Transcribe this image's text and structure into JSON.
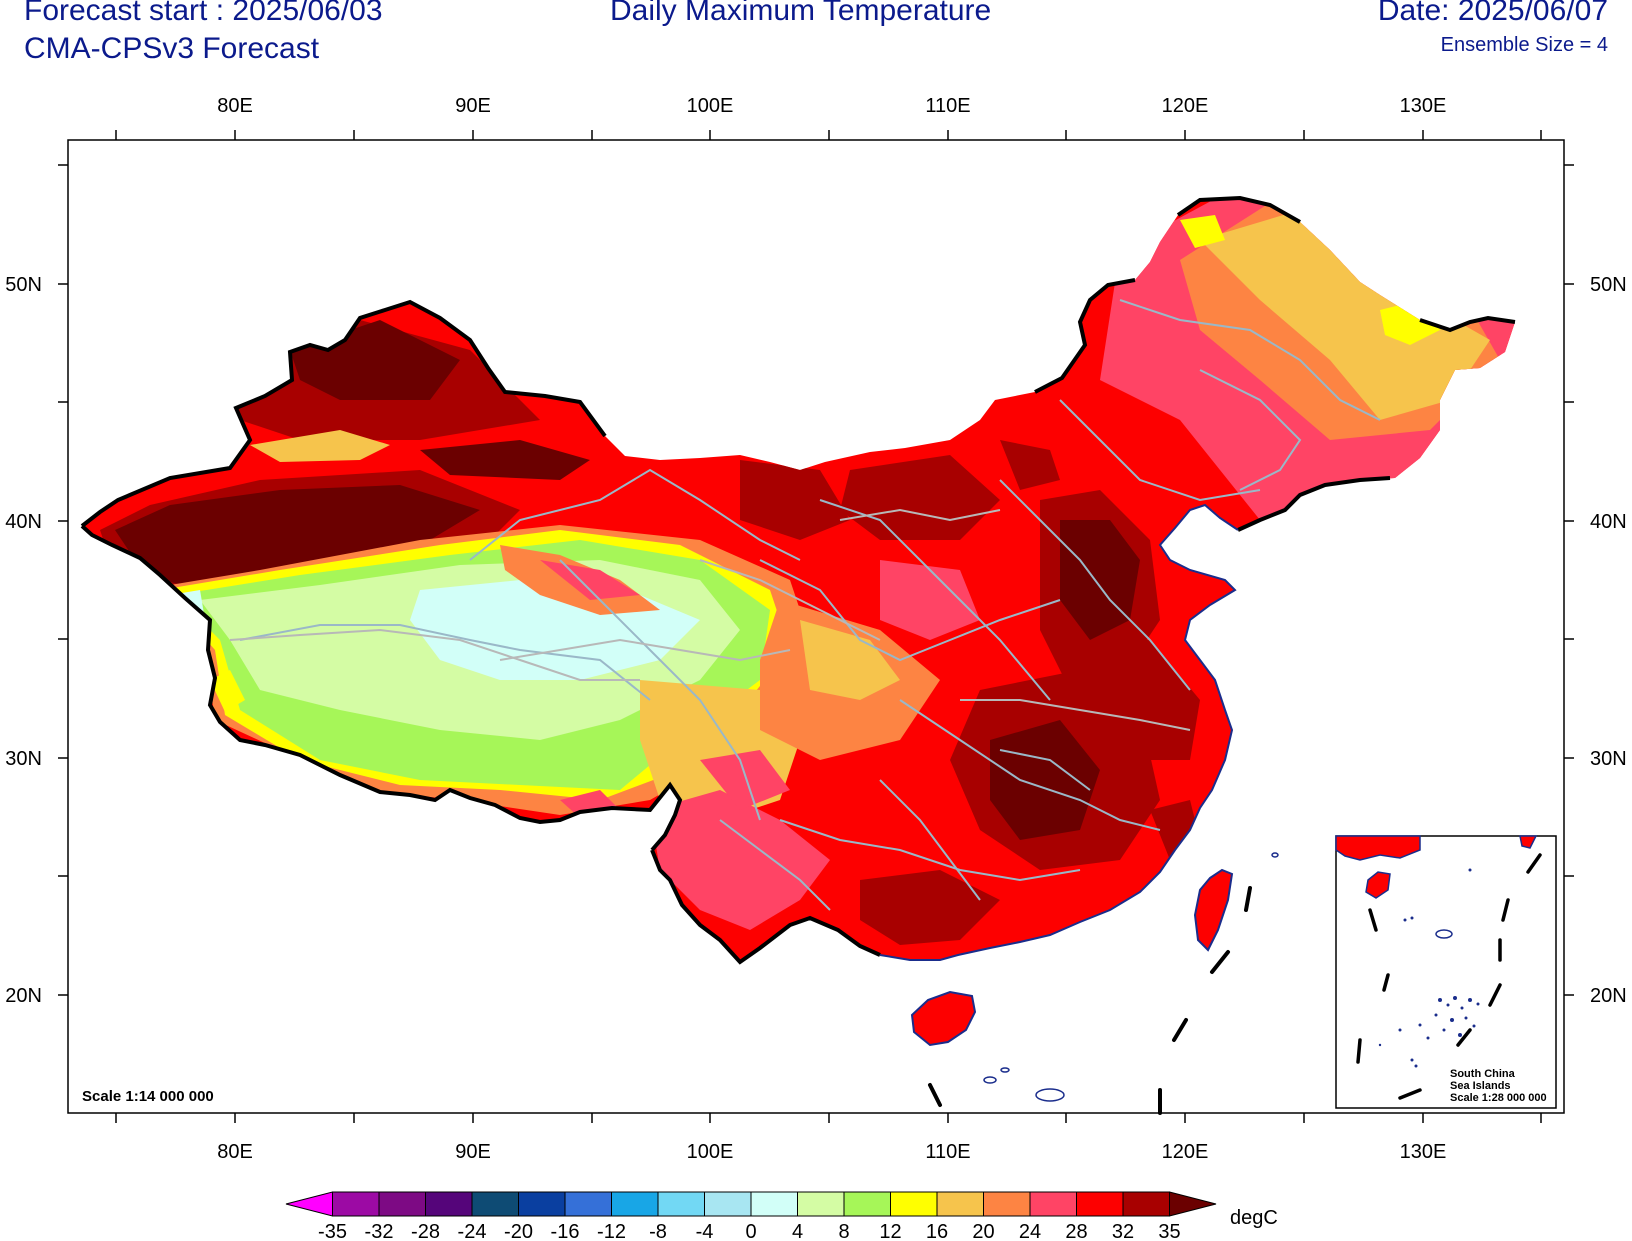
{
  "header": {
    "forecast_start": "Forecast start : 2025/06/03",
    "model": "CMA-CPSv3 Forecast",
    "title": "Daily Maximum Temperature",
    "date": "Date: 2025/06/07",
    "ensemble": "Ensemble Size = 4"
  },
  "axes": {
    "lon_labels": [
      "80E",
      "90E",
      "100E",
      "110E",
      "120E",
      "130E"
    ],
    "lat_labels": [
      "50N",
      "40N",
      "30N",
      "20N"
    ]
  },
  "scale_main": "Scale 1:14 000 000",
  "inset": {
    "line1": "South China",
    "line2": "Sea Islands",
    "line3": "Scale 1:28 000 000"
  },
  "colorbar": {
    "unit": "degC",
    "levels": [
      "-35",
      "-32",
      "-28",
      "-24",
      "-20",
      "-16",
      "-12",
      "-8",
      "-4",
      "0",
      "4",
      "8",
      "12",
      "16",
      "20",
      "24",
      "28",
      "32",
      "35"
    ],
    "colors": [
      "#ff00ff",
      "#9c0aa4",
      "#7d0a84",
      "#55057a",
      "#0e4b74",
      "#0a3fa0",
      "#3570d8",
      "#18a6e6",
      "#72d8f4",
      "#a8e6f2",
      "#d2fff8",
      "#d4fca4",
      "#a6f658",
      "#ffff00",
      "#f6c44c",
      "#fd8443",
      "#ff4465",
      "#fd0000",
      "#a80000",
      "#6b0000"
    ]
  }
}
